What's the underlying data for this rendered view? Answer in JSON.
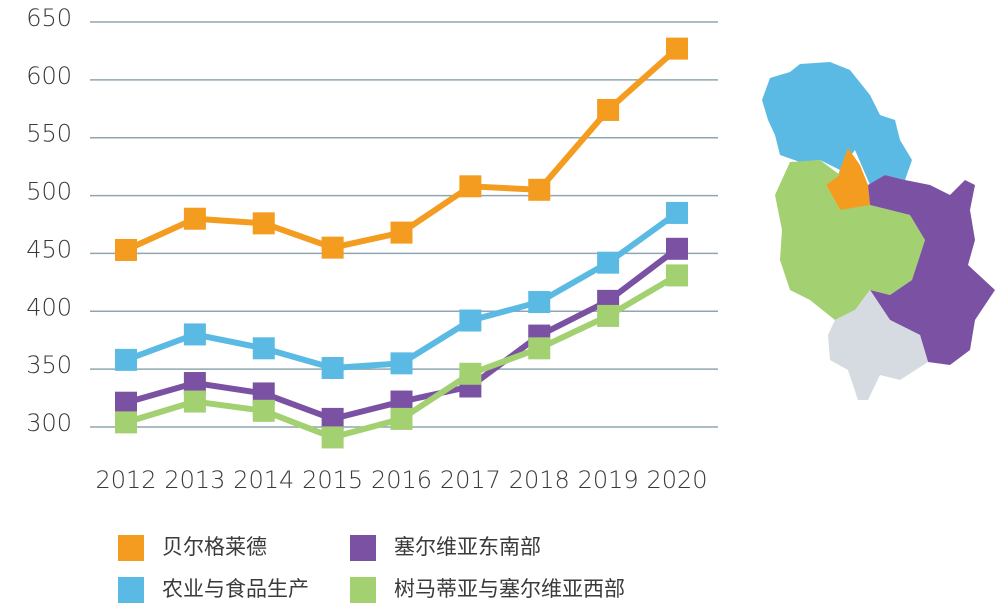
{
  "chart_data": {
    "type": "line",
    "categories": [
      "2012",
      "2013",
      "2014",
      "2015",
      "2016",
      "2017",
      "2018",
      "2019",
      "2020"
    ],
    "series": [
      {
        "name": "贝尔格莱德",
        "color": "#f39c1f",
        "values": [
          453,
          480,
          476,
          455,
          468,
          508,
          505,
          574,
          627
        ]
      },
      {
        "name": "塞尔维亚东南部",
        "color": "#7b52a3",
        "values": [
          321,
          338,
          329,
          307,
          322,
          335,
          379,
          409,
          454
        ]
      },
      {
        "name": "农业与食品生产",
        "color": "#5bbae3",
        "values": [
          358,
          380,
          368,
          351,
          355,
          392,
          408,
          442,
          485
        ]
      },
      {
        "name": "树马蒂亚与塞尔维亚西部",
        "color": "#a3d070",
        "values": [
          304,
          322,
          314,
          291,
          307,
          346,
          368,
          396,
          431
        ]
      }
    ],
    "ylim": [
      300,
      650
    ],
    "yticks": [
      300,
      350,
      400,
      450,
      500,
      550,
      600,
      650
    ],
    "grid": true
  }
}
